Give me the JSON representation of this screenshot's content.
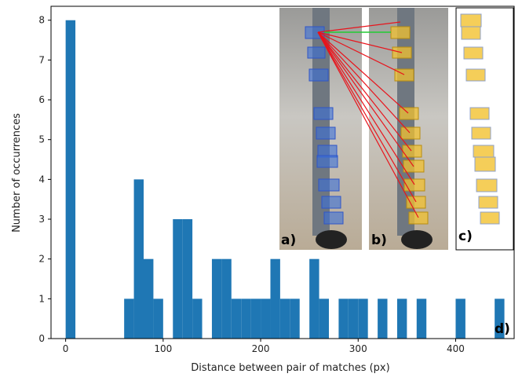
{
  "chart_data": {
    "type": "histogram",
    "xlabel": "Distance between pair of matches (px)",
    "ylabel": "Number of occurrences",
    "color": "#1f77b4",
    "bins": [
      0,
      10,
      20,
      30,
      40,
      50,
      60,
      70,
      80,
      90,
      100,
      110,
      120,
      130,
      140,
      150,
      160,
      170,
      180,
      190,
      200,
      210,
      220,
      230,
      240,
      250,
      260,
      270,
      280,
      290,
      300,
      310,
      320,
      330,
      340,
      350,
      360,
      370,
      380,
      390,
      400,
      410,
      420,
      430,
      440,
      450
    ],
    "counts": [
      8,
      0,
      0,
      0,
      0,
      0,
      1,
      4,
      2,
      1,
      0,
      3,
      3,
      1,
      0,
      2,
      2,
      1,
      1,
      1,
      1,
      2,
      1,
      1,
      0,
      2,
      1,
      0,
      1,
      1,
      1,
      0,
      1,
      0,
      1,
      0,
      1,
      0,
      0,
      0,
      1,
      0,
      0,
      0,
      1
    ],
    "xlim": [
      -15,
      460
    ],
    "ylim": [
      0,
      8.35
    ],
    "xticks": [
      0,
      100,
      200,
      300,
      400
    ],
    "yticks": [
      0,
      1,
      2,
      3,
      4,
      5,
      6,
      7,
      8
    ],
    "annotations": [
      "a)",
      "b)",
      "c)",
      "d)"
    ]
  }
}
